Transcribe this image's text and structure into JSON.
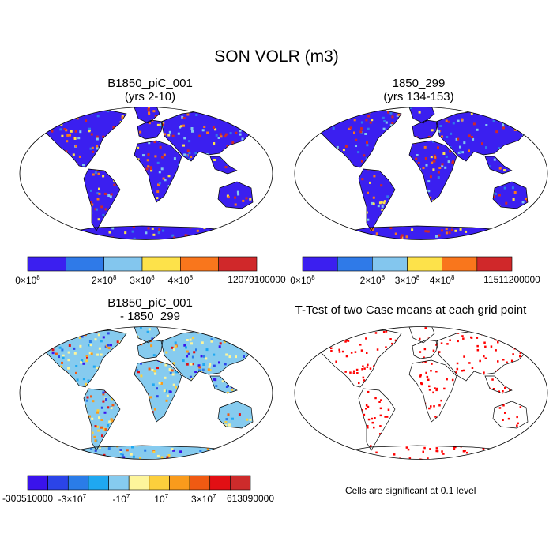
{
  "title": "SON VOLR (m3)",
  "panels": [
    {
      "id": "p1",
      "title_line1": "B1850_piC_001",
      "title_line2": "(yrs 2-10)",
      "kind": "field"
    },
    {
      "id": "p2",
      "title_line1": "1850_299",
      "title_line2": "(yrs 134-153)",
      "kind": "field"
    },
    {
      "id": "p3",
      "title_line1": "B1850_piC_001",
      "title_line2": "- 1850_299",
      "kind": "diff"
    },
    {
      "id": "p4",
      "title_line1": "T-Test of two Case means at each grid point",
      "title_line2": "",
      "kind": "ttest"
    }
  ],
  "colorbars": [
    {
      "colors": [
        "#3b1ff0",
        "#2f7ae8",
        "#83c6ee",
        "#fde24a",
        "#f9761c",
        "#d0282a"
      ],
      "labels": [
        {
          "base": "0×10",
          "exp": "8"
        },
        {
          "base": "2×10",
          "exp": "8"
        },
        {
          "base": "3×10",
          "exp": "8"
        },
        {
          "base": "4×10",
          "exp": "8"
        },
        {
          "base": "12079100000",
          "exp": ""
        }
      ]
    },
    {
      "colors": [
        "#3b1ff0",
        "#2f7ae8",
        "#83c6ee",
        "#fde24a",
        "#f9761c",
        "#d0282a"
      ],
      "labels": [
        {
          "base": "0×10",
          "exp": "8"
        },
        {
          "base": "2×10",
          "exp": "8"
        },
        {
          "base": "3×10",
          "exp": "8"
        },
        {
          "base": "4×10",
          "exp": "8"
        },
        {
          "base": "11511200000",
          "exp": ""
        }
      ]
    },
    {
      "colors": [
        "#3a13ec",
        "#2b44e8",
        "#2a7ce8",
        "#1fa8f1",
        "#86cbef",
        "#fdf59b",
        "#fccf3c",
        "#f99b1c",
        "#f05a12",
        "#e20f14",
        "#cd2b2b"
      ],
      "labels": [
        {
          "base": "-300510000",
          "exp": ""
        },
        {
          "base": "-3×10",
          "exp": "7"
        },
        {
          "base": "-10",
          "exp": "7"
        },
        {
          "base": "10",
          "exp": "7"
        },
        {
          "base": "3×10",
          "exp": "7"
        },
        {
          "base": "613090000",
          "exp": ""
        }
      ]
    }
  ],
  "ttest_note": "Cells are significant at 0.1 level",
  "chart_data": {
    "type": "heatmap",
    "variable": "SON VOLR (m3)",
    "panels": [
      {
        "name": "B1850_piC_001 (yrs 2-10)",
        "range": [
          0,
          12079100000
        ],
        "levels": [
          0,
          200000000,
          300000000,
          400000000,
          12079100000
        ]
      },
      {
        "name": "1850_299 (yrs 134-153)",
        "range": [
          0,
          11511200000
        ],
        "levels": [
          0,
          200000000,
          300000000,
          400000000,
          11511200000
        ]
      },
      {
        "name": "B1850_piC_001 - 1850_299",
        "range": [
          -300510000,
          613090000
        ],
        "levels": [
          -300510000,
          -30000000,
          -10000000,
          10000000,
          30000000,
          613090000
        ]
      },
      {
        "name": "T-Test of two Case means at each grid point",
        "significance_level": 0.1
      }
    ]
  }
}
